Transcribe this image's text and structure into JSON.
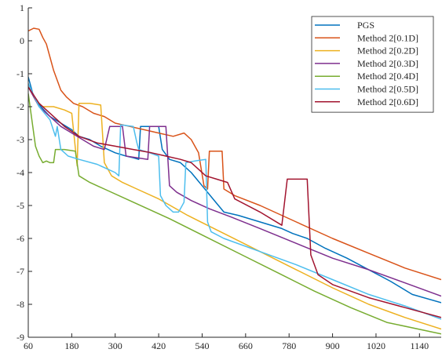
{
  "chart_data": {
    "type": "line",
    "title": "",
    "xlabel": "",
    "ylabel": "",
    "xlim": [
      60,
      1200
    ],
    "ylim": [
      -9,
      1
    ],
    "xticks": [
      60,
      180,
      300,
      420,
      540,
      660,
      780,
      900,
      1020,
      1140
    ],
    "xtick_labels": [
      "60",
      "180",
      "300",
      "420",
      "540",
      "660",
      "780",
      "900",
      "1020",
      "1140"
    ],
    "yticks": [
      1,
      0,
      -1,
      -2,
      -3,
      -4,
      -5,
      -6,
      -7,
      -8,
      -9
    ],
    "ytick_labels": [
      "1",
      "0",
      "-1",
      "-2",
      "-3",
      "-4",
      "-5",
      "-6",
      "-7",
      "-8",
      "-9"
    ],
    "grid": false,
    "legend_position": "top-right",
    "series": [
      {
        "name": "PGS",
        "color": "#0072BD",
        "points": [
          [
            60,
            -1.1
          ],
          [
            75,
            -1.7
          ],
          [
            95,
            -2.0
          ],
          [
            120,
            -2.3
          ],
          [
            150,
            -2.5
          ],
          [
            180,
            -2.7
          ],
          [
            200,
            -2.9
          ],
          [
            230,
            -3.0
          ],
          [
            260,
            -3.2
          ],
          [
            280,
            -3.3
          ],
          [
            300,
            -3.4
          ],
          [
            330,
            -3.5
          ],
          [
            350,
            -3.55
          ],
          [
            365,
            -3.6
          ],
          [
            370,
            -2.6
          ],
          [
            400,
            -2.6
          ],
          [
            420,
            -2.6
          ],
          [
            430,
            -3.3
          ],
          [
            450,
            -3.6
          ],
          [
            480,
            -3.7
          ],
          [
            510,
            -4.0
          ],
          [
            540,
            -4.4
          ],
          [
            570,
            -4.8
          ],
          [
            600,
            -5.2
          ],
          [
            640,
            -5.3
          ],
          [
            700,
            -5.5
          ],
          [
            760,
            -5.7
          ],
          [
            790,
            -5.85
          ],
          [
            830,
            -6.0
          ],
          [
            880,
            -6.3
          ],
          [
            940,
            -6.6
          ],
          [
            1000,
            -6.95
          ],
          [
            1060,
            -7.3
          ],
          [
            1120,
            -7.7
          ],
          [
            1200,
            -7.95
          ]
        ]
      },
      {
        "name": "Method 2[0.1D]",
        "color": "#D95319",
        "points": [
          [
            60,
            0.3
          ],
          [
            75,
            0.38
          ],
          [
            90,
            0.35
          ],
          [
            100,
            0.1
          ],
          [
            110,
            -0.1
          ],
          [
            120,
            -0.5
          ],
          [
            130,
            -0.9
          ],
          [
            140,
            -1.2
          ],
          [
            150,
            -1.5
          ],
          [
            165,
            -1.7
          ],
          [
            185,
            -1.9
          ],
          [
            210,
            -2.0
          ],
          [
            240,
            -2.2
          ],
          [
            270,
            -2.3
          ],
          [
            300,
            -2.5
          ],
          [
            340,
            -2.6
          ],
          [
            380,
            -2.7
          ],
          [
            420,
            -2.8
          ],
          [
            460,
            -2.9
          ],
          [
            490,
            -2.8
          ],
          [
            510,
            -3.0
          ],
          [
            530,
            -3.4
          ],
          [
            545,
            -4.4
          ],
          [
            555,
            -4.5
          ],
          [
            560,
            -3.35
          ],
          [
            595,
            -3.35
          ],
          [
            600,
            -4.5
          ],
          [
            630,
            -4.7
          ],
          [
            700,
            -5.0
          ],
          [
            800,
            -5.5
          ],
          [
            900,
            -6.0
          ],
          [
            1000,
            -6.45
          ],
          [
            1100,
            -6.9
          ],
          [
            1200,
            -7.25
          ]
        ]
      },
      {
        "name": "Method 2[0.2D]",
        "color": "#EDB120",
        "points": [
          [
            60,
            -1.4
          ],
          [
            80,
            -1.8
          ],
          [
            100,
            -2.0
          ],
          [
            130,
            -2.0
          ],
          [
            160,
            -2.1
          ],
          [
            180,
            -2.2
          ],
          [
            195,
            -3.8
          ],
          [
            200,
            -1.9
          ],
          [
            230,
            -1.9
          ],
          [
            260,
            -1.95
          ],
          [
            270,
            -3.7
          ],
          [
            290,
            -4.1
          ],
          [
            320,
            -4.3
          ],
          [
            360,
            -4.5
          ],
          [
            420,
            -4.8
          ],
          [
            500,
            -5.3
          ],
          [
            600,
            -5.85
          ],
          [
            700,
            -6.4
          ],
          [
            800,
            -6.95
          ],
          [
            900,
            -7.5
          ],
          [
            1000,
            -8.0
          ],
          [
            1100,
            -8.4
          ],
          [
            1200,
            -8.75
          ]
        ]
      },
      {
        "name": "Method 2[0.3D]",
        "color": "#7E2F8E",
        "points": [
          [
            60,
            -1.4
          ],
          [
            90,
            -2.0
          ],
          [
            120,
            -2.3
          ],
          [
            150,
            -2.6
          ],
          [
            180,
            -2.8
          ],
          [
            210,
            -3.0
          ],
          [
            240,
            -3.2
          ],
          [
            270,
            -3.3
          ],
          [
            285,
            -2.6
          ],
          [
            320,
            -2.6
          ],
          [
            330,
            -3.5
          ],
          [
            360,
            -3.55
          ],
          [
            390,
            -3.6
          ],
          [
            395,
            -2.6
          ],
          [
            440,
            -2.6
          ],
          [
            450,
            -4.4
          ],
          [
            470,
            -4.6
          ],
          [
            510,
            -4.85
          ],
          [
            560,
            -5.1
          ],
          [
            620,
            -5.35
          ],
          [
            700,
            -5.7
          ],
          [
            800,
            -6.15
          ],
          [
            900,
            -6.6
          ],
          [
            1000,
            -6.95
          ],
          [
            1100,
            -7.35
          ],
          [
            1200,
            -7.75
          ]
        ]
      },
      {
        "name": "Method 2[0.4D]",
        "color": "#77AC30",
        "points": [
          [
            60,
            -1.6
          ],
          [
            70,
            -2.4
          ],
          [
            80,
            -3.2
          ],
          [
            90,
            -3.5
          ],
          [
            100,
            -3.7
          ],
          [
            110,
            -3.65
          ],
          [
            120,
            -3.7
          ],
          [
            130,
            -3.7
          ],
          [
            135,
            -3.3
          ],
          [
            160,
            -3.3
          ],
          [
            190,
            -3.35
          ],
          [
            200,
            -4.1
          ],
          [
            230,
            -4.3
          ],
          [
            270,
            -4.5
          ],
          [
            350,
            -4.9
          ],
          [
            450,
            -5.4
          ],
          [
            550,
            -5.95
          ],
          [
            650,
            -6.5
          ],
          [
            750,
            -7.05
          ],
          [
            850,
            -7.6
          ],
          [
            950,
            -8.1
          ],
          [
            1050,
            -8.55
          ],
          [
            1200,
            -8.9
          ]
        ]
      },
      {
        "name": "Method 2[0.5D]",
        "color": "#4DBEEE",
        "points": [
          [
            60,
            -1.3
          ],
          [
            90,
            -2.0
          ],
          [
            120,
            -2.4
          ],
          [
            135,
            -2.9
          ],
          [
            140,
            -2.6
          ],
          [
            150,
            -3.3
          ],
          [
            170,
            -3.5
          ],
          [
            200,
            -3.6
          ],
          [
            250,
            -3.75
          ],
          [
            300,
            -4.0
          ],
          [
            310,
            -4.1
          ],
          [
            315,
            -2.55
          ],
          [
            350,
            -2.6
          ],
          [
            360,
            -3.1
          ],
          [
            365,
            -3.3
          ],
          [
            395,
            -3.4
          ],
          [
            420,
            -3.5
          ],
          [
            425,
            -4.7
          ],
          [
            440,
            -5.0
          ],
          [
            460,
            -5.2
          ],
          [
            475,
            -5.2
          ],
          [
            490,
            -4.9
          ],
          [
            495,
            -3.7
          ],
          [
            520,
            -3.65
          ],
          [
            550,
            -3.6
          ],
          [
            555,
            -5.5
          ],
          [
            565,
            -5.8
          ],
          [
            600,
            -6.0
          ],
          [
            700,
            -6.4
          ],
          [
            800,
            -6.8
          ],
          [
            900,
            -7.25
          ],
          [
            1000,
            -7.7
          ],
          [
            1100,
            -8.05
          ],
          [
            1200,
            -8.45
          ]
        ]
      },
      {
        "name": "Method 2[0.6D]",
        "color": "#A2142F",
        "points": [
          [
            60,
            -1.4
          ],
          [
            90,
            -1.9
          ],
          [
            120,
            -2.2
          ],
          [
            160,
            -2.6
          ],
          [
            200,
            -2.9
          ],
          [
            250,
            -3.1
          ],
          [
            300,
            -3.2
          ],
          [
            350,
            -3.3
          ],
          [
            400,
            -3.4
          ],
          [
            440,
            -3.5
          ],
          [
            480,
            -3.6
          ],
          [
            510,
            -3.7
          ],
          [
            530,
            -3.9
          ],
          [
            550,
            -4.1
          ],
          [
            580,
            -4.2
          ],
          [
            610,
            -4.3
          ],
          [
            630,
            -4.8
          ],
          [
            700,
            -5.2
          ],
          [
            760,
            -5.6
          ],
          [
            775,
            -4.2
          ],
          [
            795,
            -4.2
          ],
          [
            830,
            -4.2
          ],
          [
            840,
            -6.5
          ],
          [
            860,
            -7.1
          ],
          [
            900,
            -7.4
          ],
          [
            1000,
            -7.8
          ],
          [
            1100,
            -8.1
          ],
          [
            1200,
            -8.4
          ]
        ]
      }
    ]
  }
}
